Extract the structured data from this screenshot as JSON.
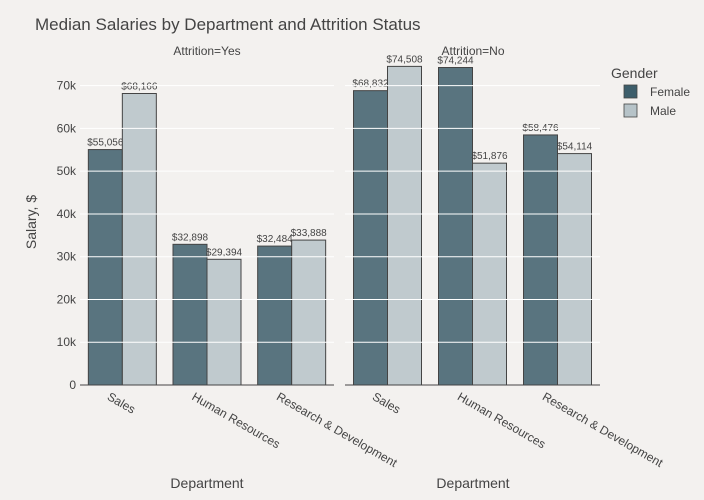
{
  "chart_data": {
    "type": "bar",
    "title": "Median Salaries by Department and Attrition Status",
    "ylabel": "Salary, $",
    "xlabel": "Department",
    "ylim": [
      0,
      76000
    ],
    "yticks": [
      0,
      10000,
      20000,
      30000,
      40000,
      50000,
      60000,
      70000
    ],
    "ytick_labels": [
      "0",
      "10k",
      "20k",
      "30k",
      "40k",
      "50k",
      "60k",
      "70k"
    ],
    "grid": true,
    "legend": {
      "title": "Gender",
      "placement": "top-right"
    },
    "series_colors": {
      "Female": "#3d5e6b",
      "Male": "#b6c3c8"
    },
    "series_names": [
      "Female",
      "Male"
    ],
    "categories": [
      "Sales",
      "Human Resources",
      "Research & Development"
    ],
    "facets": [
      {
        "label": "Attrition=Yes",
        "series": [
          {
            "name": "Female",
            "values": [
              55056,
              32898,
              32484
            ],
            "labels": [
              "$55,056",
              "$32,898",
              "$32,484"
            ]
          },
          {
            "name": "Male",
            "values": [
              68166,
              29394,
              33888
            ],
            "labels": [
              "$68,166",
              "$29,394",
              "$33,888"
            ]
          }
        ]
      },
      {
        "label": "Attrition=No",
        "series": [
          {
            "name": "Female",
            "values": [
              68832,
              74244,
              58476
            ],
            "labels": [
              "$68,832",
              "$74,244",
              "$58,476"
            ]
          },
          {
            "name": "Male",
            "values": [
              74508,
              51876,
              54114
            ],
            "labels": [
              "$74,508",
              "$51,876",
              "$54,114"
            ]
          }
        ]
      }
    ]
  }
}
